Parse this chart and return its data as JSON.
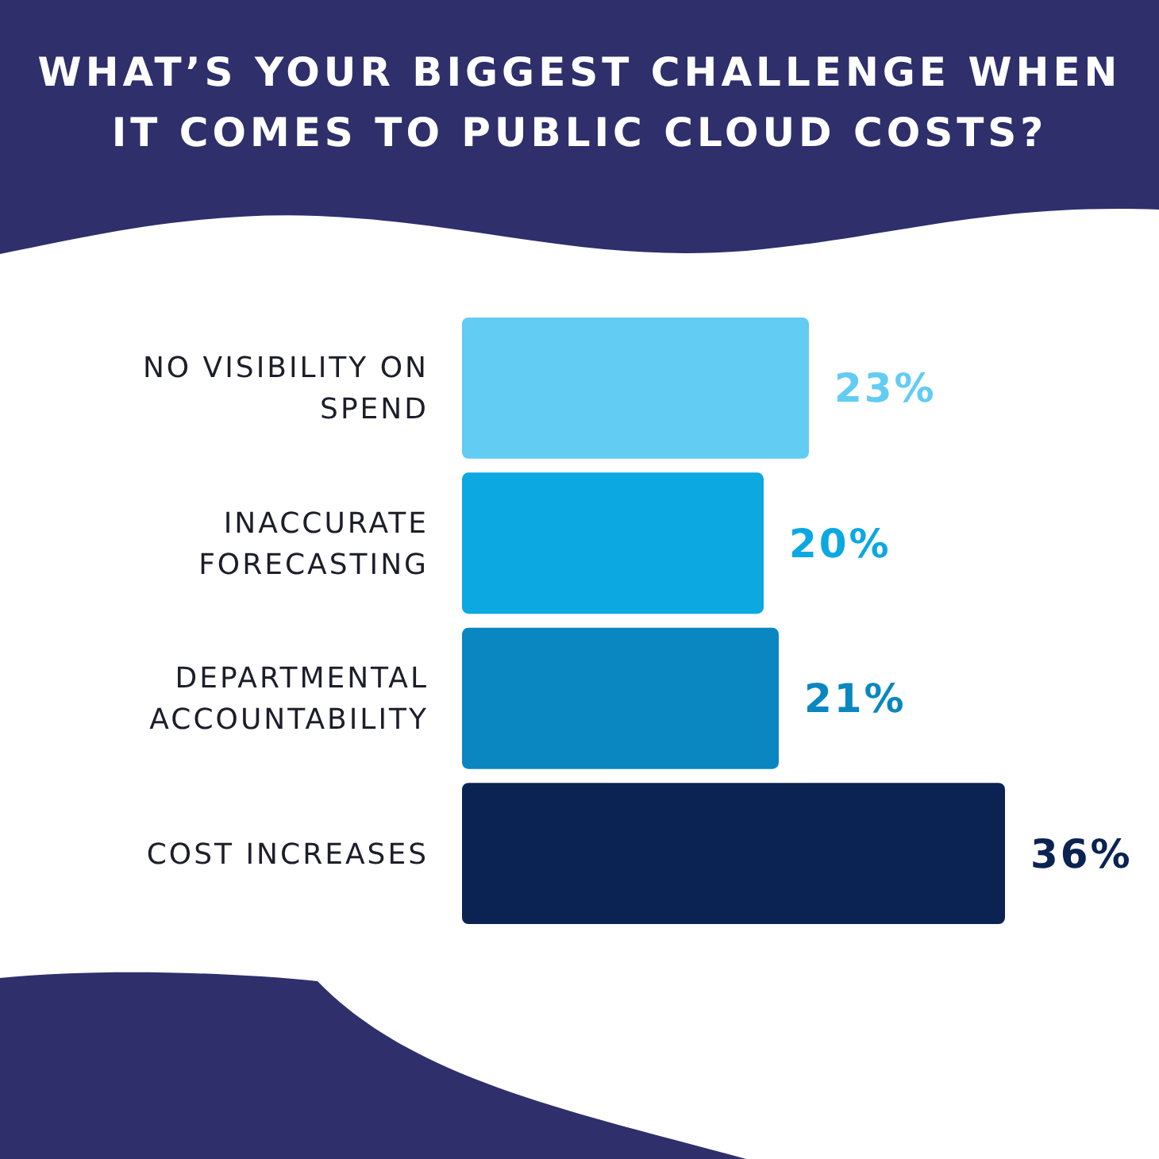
{
  "chart_data": {
    "type": "bar",
    "orientation": "horizontal",
    "title": "WHAT’S YOUR BIGGEST CHALLENGE WHEN IT COMES TO PUBLIC CLOUD COSTS?",
    "categories": [
      "NO VISIBILITY ON SPEND",
      "INACCURATE FORECASTING",
      "DEPARTMENTAL ACCOUNTABILITY",
      "COST INCREASES"
    ],
    "values": [
      23,
      20,
      21,
      36
    ],
    "colors": [
      "#62ccf3",
      "#0ba8e2",
      "#0a87c1",
      "#0b2352"
    ],
    "value_labels": [
      "23%",
      "20%",
      "21%",
      "36%"
    ],
    "tick_labels": "y"
  }
}
